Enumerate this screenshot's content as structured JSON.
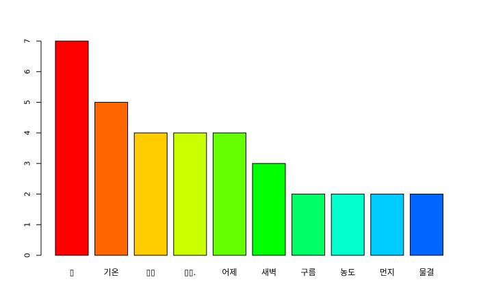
{
  "chart_data": {
    "type": "bar",
    "title": "",
    "xlabel": "",
    "ylabel": "",
    "categories": [
      "▯",
      "기온",
      "▯▯",
      "▯▯.",
      "어제",
      "새벽",
      "구름",
      "농도",
      "먼지",
      "물결"
    ],
    "values": [
      7,
      5,
      4,
      4,
      4,
      3,
      2,
      2,
      2,
      2
    ],
    "colors": [
      "#FF0000",
      "#FF6600",
      "#FFCC00",
      "#CCFF00",
      "#66FF00",
      "#00FF00",
      "#00FF66",
      "#00FFCC",
      "#00CCFF",
      "#0066FF"
    ],
    "ylim": [
      0,
      7
    ],
    "yticks": [
      "0",
      "1",
      "2",
      "3",
      "4",
      "5",
      "6",
      "7"
    ],
    "grid": false,
    "legend": "none"
  }
}
